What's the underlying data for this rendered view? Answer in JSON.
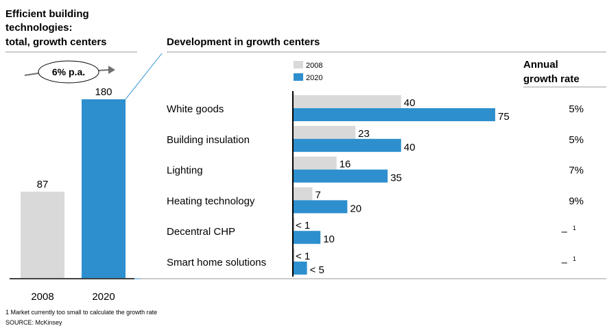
{
  "left_panel": {
    "title_lines": [
      "Efficient building",
      "technologies:",
      "total, growth centers"
    ],
    "cagr_label": "6% p.a.",
    "chart_data": {
      "type": "bar",
      "categories": [
        "2008",
        "2020"
      ],
      "values": [
        87,
        180
      ],
      "colors": [
        "#d9d9d9",
        "#2e8fce"
      ],
      "ylim": [
        0,
        180
      ]
    }
  },
  "right_panel": {
    "title": "Development in growth centers",
    "growth_header_lines": [
      "Annual",
      "growth rate"
    ],
    "legend": [
      {
        "name": "2008",
        "color": "#d9d9d9"
      },
      {
        "name": "2020",
        "color": "#2e8fce"
      }
    ],
    "chart_data": {
      "type": "bar",
      "orientation": "horizontal",
      "categories": [
        "White goods",
        "Building insulation",
        "Lighting",
        "Heating technology",
        "Decentral CHP",
        "Smart home solutions"
      ],
      "series": [
        {
          "name": "2008",
          "values": [
            40,
            23,
            16,
            7,
            0.5,
            0.5
          ],
          "labels": [
            "40",
            "23",
            "16",
            "7",
            "< 1",
            "< 1"
          ]
        },
        {
          "name": "2020",
          "values": [
            75,
            40,
            35,
            20,
            10,
            5
          ],
          "labels": [
            "75",
            "40",
            "35",
            "20",
            "10",
            "< 5"
          ]
        }
      ],
      "growth_rates": [
        "5%",
        "5%",
        "7%",
        "9%",
        "–",
        "–"
      ],
      "growth_footnotes": [
        "",
        "",
        "",
        "",
        "1",
        "1"
      ],
      "xlim": [
        0,
        75
      ]
    }
  },
  "footnote": "1 Market currently too small to calculate the growth rate",
  "source": "SOURCE: McKinsey",
  "colors": {
    "grey": "#d9d9d9",
    "blue": "#2e8fce",
    "rule": "#9a9a9a",
    "arrow": "#6e6e6e"
  }
}
